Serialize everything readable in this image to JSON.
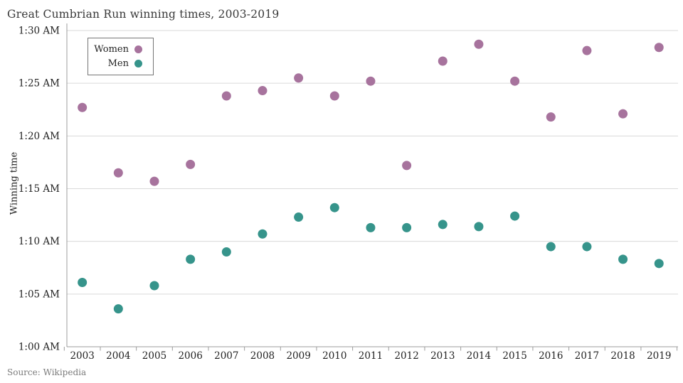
{
  "title": "Great Cumbrian Run winning times, 2003-2019",
  "source": "Source: Wikipedia",
  "legend": {
    "women_label": "Women",
    "men_label": "Men"
  },
  "colors": {
    "women": "#a7739d",
    "men": "#36948b",
    "grid": "#dadada",
    "axis": "#9c9c9c",
    "tick_text": "#222222",
    "title_text": "#383838",
    "source_text": "#7b7b7b"
  },
  "chart_data": {
    "type": "scatter",
    "title": "Great Cumbrian Run winning times, 2003-2019",
    "xlabel": "",
    "ylabel": "Winning time",
    "categories": [
      2003,
      2004,
      2005,
      2006,
      2007,
      2008,
      2009,
      2010,
      2011,
      2012,
      2013,
      2014,
      2015,
      2016,
      2017,
      2018,
      2019
    ],
    "y_axis_unit": "time of 1:00 AM - 1:30 AM shown; values stored as minutes after 1:00",
    "y_ticks_bottom_to_top": [
      "1:00 AM",
      "1:05 AM",
      "1:10 AM",
      "1:15 AM",
      "1:20 AM",
      "1:25 AM",
      "1:30 AM"
    ],
    "ylim_minutes": [
      60,
      90
    ],
    "grid": true,
    "legend_position": "top-left-inside",
    "series": [
      {
        "name": "Women",
        "color": "#a7739d",
        "minutes_after_1am": [
          82.7,
          76.5,
          75.7,
          77.3,
          83.8,
          84.3,
          85.5,
          83.8,
          85.2,
          77.2,
          87.1,
          88.7,
          85.2,
          81.8,
          88.1,
          82.1,
          88.4
        ],
        "times": [
          "1:22:42",
          "1:16:30",
          "1:15:42",
          "1:17:18",
          "1:23:48",
          "1:24:18",
          "1:25:30",
          "1:23:48",
          "1:25:12",
          "1:17:12",
          "1:27:06",
          "1:28:42",
          "1:25:12",
          "1:21:48",
          "1:28:06",
          "1:22:06",
          "1:28:24"
        ]
      },
      {
        "name": "Men",
        "color": "#36948b",
        "minutes_after_1am": [
          66.1,
          63.6,
          65.8,
          68.3,
          69.0,
          70.7,
          72.3,
          73.2,
          71.3,
          71.3,
          71.6,
          71.4,
          72.4,
          69.5,
          69.5,
          68.3,
          67.9
        ],
        "times": [
          "1:06:06",
          "1:03:36",
          "1:05:48",
          "1:08:18",
          "1:09:00",
          "1:10:42",
          "1:12:18",
          "1:13:12",
          "1:11:18",
          "1:11:18",
          "1:11:36",
          "1:11:24",
          "1:12:24",
          "1:09:30",
          "1:09:30",
          "1:08:18",
          "1:07:54"
        ]
      }
    ]
  }
}
